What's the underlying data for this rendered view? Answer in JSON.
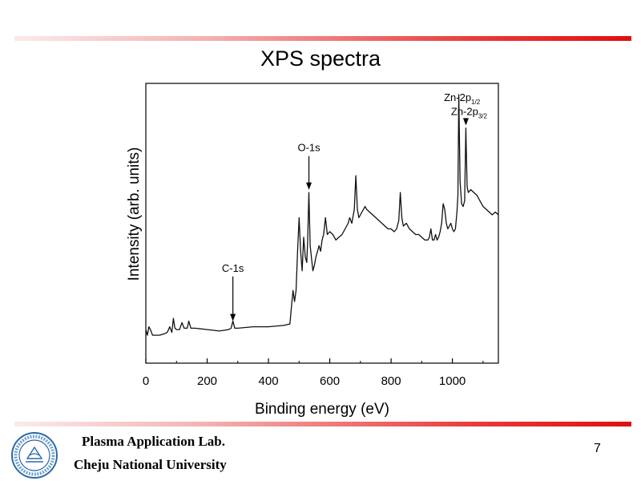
{
  "slide": {
    "title": "XPS spectra",
    "lab_name": "Plasma Application Lab.",
    "university": "Cheju National University",
    "page_number": "7",
    "accent_color": "#e10f0f"
  },
  "chart_data": {
    "type": "line",
    "title": "XPS spectra",
    "xlabel": "Binding energy (eV)",
    "ylabel": "Intensity (arb. units)",
    "xlim": [
      0,
      1150
    ],
    "ylim": [
      0,
      100
    ],
    "x_ticks": [
      0,
      200,
      400,
      600,
      800,
      1000
    ],
    "y_ticks_shown": false,
    "grid": false,
    "series": [
      {
        "name": "spectrum",
        "points": [
          [
            0,
            12
          ],
          [
            5,
            10
          ],
          [
            10,
            13
          ],
          [
            15,
            12
          ],
          [
            22,
            10
          ],
          [
            30,
            10
          ],
          [
            45,
            10
          ],
          [
            60,
            10.5
          ],
          [
            70,
            11
          ],
          [
            78,
            13
          ],
          [
            85,
            11
          ],
          [
            90,
            16
          ],
          [
            95,
            12.5
          ],
          [
            100,
            12
          ],
          [
            110,
            12
          ],
          [
            118,
            14.5
          ],
          [
            125,
            12.5
          ],
          [
            135,
            12.5
          ],
          [
            140,
            15
          ],
          [
            147,
            12.5
          ],
          [
            160,
            12.5
          ],
          [
            200,
            12
          ],
          [
            240,
            11.5
          ],
          [
            270,
            12
          ],
          [
            278,
            12.5
          ],
          [
            284,
            15
          ],
          [
            290,
            12.5
          ],
          [
            300,
            12.5
          ],
          [
            350,
            13
          ],
          [
            400,
            13
          ],
          [
            450,
            13.5
          ],
          [
            470,
            14
          ],
          [
            475,
            20
          ],
          [
            480,
            26
          ],
          [
            485,
            22
          ],
          [
            490,
            26
          ],
          [
            495,
            40
          ],
          [
            500,
            52
          ],
          [
            505,
            40
          ],
          [
            510,
            33
          ],
          [
            515,
            45
          ],
          [
            520,
            38
          ],
          [
            525,
            36
          ],
          [
            528,
            44
          ],
          [
            532,
            61
          ],
          [
            536,
            42
          ],
          [
            540,
            38
          ],
          [
            545,
            33
          ],
          [
            550,
            35
          ],
          [
            555,
            38
          ],
          [
            560,
            40
          ],
          [
            565,
            42
          ],
          [
            570,
            40
          ],
          [
            575,
            44
          ],
          [
            580,
            46
          ],
          [
            586,
            52
          ],
          [
            592,
            46
          ],
          [
            600,
            47
          ],
          [
            610,
            46
          ],
          [
            620,
            44
          ],
          [
            630,
            45
          ],
          [
            640,
            46
          ],
          [
            650,
            48
          ],
          [
            660,
            50
          ],
          [
            665,
            52
          ],
          [
            672,
            50
          ],
          [
            680,
            55
          ],
          [
            685,
            67
          ],
          [
            690,
            55
          ],
          [
            695,
            52
          ],
          [
            700,
            53
          ],
          [
            705,
            54
          ],
          [
            715,
            56
          ],
          [
            720,
            55
          ],
          [
            730,
            54
          ],
          [
            740,
            53
          ],
          [
            750,
            52
          ],
          [
            760,
            51
          ],
          [
            770,
            50
          ],
          [
            780,
            49
          ],
          [
            790,
            48
          ],
          [
            800,
            48
          ],
          [
            810,
            47
          ],
          [
            818,
            48
          ],
          [
            825,
            51
          ],
          [
            830,
            61
          ],
          [
            835,
            52
          ],
          [
            840,
            49
          ],
          [
            850,
            50
          ],
          [
            860,
            48
          ],
          [
            870,
            47
          ],
          [
            880,
            46
          ],
          [
            890,
            46
          ],
          [
            900,
            45
          ],
          [
            910,
            44
          ],
          [
            920,
            44
          ],
          [
            925,
            45
          ],
          [
            930,
            48
          ],
          [
            935,
            44
          ],
          [
            940,
            44
          ],
          [
            945,
            46
          ],
          [
            950,
            44
          ],
          [
            955,
            45
          ],
          [
            960,
            47
          ],
          [
            965,
            50
          ],
          [
            970,
            57
          ],
          [
            975,
            55
          ],
          [
            980,
            50
          ],
          [
            985,
            48
          ],
          [
            990,
            49
          ],
          [
            995,
            50
          ],
          [
            1000,
            48
          ],
          [
            1005,
            47
          ],
          [
            1010,
            48
          ],
          [
            1015,
            54
          ],
          [
            1018,
            60
          ],
          [
            1021,
            96
          ],
          [
            1025,
            65
          ],
          [
            1030,
            57
          ],
          [
            1035,
            56
          ],
          [
            1040,
            58
          ],
          [
            1044,
            84
          ],
          [
            1048,
            63
          ],
          [
            1052,
            61
          ],
          [
            1060,
            62
          ],
          [
            1070,
            61
          ],
          [
            1080,
            60
          ],
          [
            1090,
            58
          ],
          [
            1100,
            56
          ],
          [
            1110,
            55
          ],
          [
            1120,
            54
          ],
          [
            1130,
            53
          ],
          [
            1140,
            54
          ],
          [
            1150,
            53
          ]
        ]
      }
    ],
    "annotations": [
      {
        "label": "C-1s",
        "x": 284,
        "arrow_from_y": 31,
        "arrow_to_y": 15
      },
      {
        "label": "O-1s",
        "x": 532,
        "arrow_from_y": 74,
        "arrow_to_y": 62
      },
      {
        "label": "Zn-2p",
        "sub": "1/2",
        "x": 1021,
        "arrow_from_y": null,
        "arrow_to_y": null
      },
      {
        "label": "Zn-2p",
        "sub": "3/2",
        "x": 1044,
        "arrow_from_y": 87,
        "arrow_to_y": 85
      }
    ]
  }
}
